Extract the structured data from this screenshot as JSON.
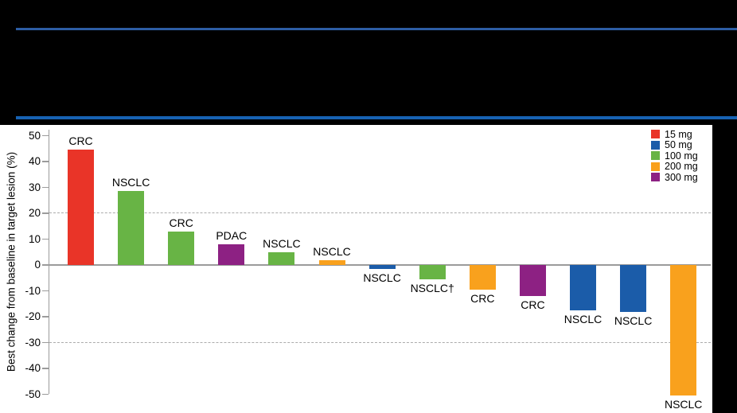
{
  "page": {
    "background": "#000000",
    "divider_top_color": "#2d5da4",
    "divider_bottom_color": "#1762b3",
    "panel_background": "#ffffff"
  },
  "chart_data": {
    "type": "bar",
    "subtype": "waterfall",
    "title": "",
    "xlabel": "",
    "ylabel": "Best change from baseline in target lesion (%)",
    "ylim": [
      -50,
      50
    ],
    "yticks": [
      50,
      40,
      30,
      20,
      10,
      0,
      -10,
      -20,
      -30,
      -40,
      -50
    ],
    "reference_lines": [
      20,
      -30
    ],
    "grid": "dashed horizontal reference lines at +20 and -30",
    "legend_position": "top-right",
    "legend": [
      {
        "label": "15 mg",
        "color": "#e93428"
      },
      {
        "label": "50 mg",
        "color": "#1b5ca9"
      },
      {
        "label": "100 mg",
        "color": "#68b445"
      },
      {
        "label": "200 mg",
        "color": "#f9a11d"
      },
      {
        "label": "300 mg",
        "color": "#8d2183"
      }
    ],
    "bars": [
      {
        "label": "CRC",
        "dose": "15 mg",
        "value": 44.5
      },
      {
        "label": "NSCLC",
        "dose": "100 mg",
        "value": 28.5
      },
      {
        "label": "CRC",
        "dose": "100 mg",
        "value": 13
      },
      {
        "label": "PDAC",
        "dose": "300 mg",
        "value": 8
      },
      {
        "label": "NSCLC",
        "dose": "100 mg",
        "value": 5
      },
      {
        "label": "NSCLC",
        "dose": "200 mg",
        "value": 2
      },
      {
        "label": "NSCLC",
        "dose": "50 mg",
        "value": -1.5
      },
      {
        "label": "NSCLC†",
        "dose": "100 mg",
        "value": -5.5
      },
      {
        "label": "CRC",
        "dose": "200 mg",
        "value": -9.5
      },
      {
        "label": "CRC",
        "dose": "300 mg",
        "value": -12
      },
      {
        "label": "NSCLC",
        "dose": "50 mg",
        "value": -17.5
      },
      {
        "label": "NSCLC",
        "dose": "50 mg",
        "value": -18
      },
      {
        "label": "NSCLC",
        "dose": "200 mg",
        "value": -50.5
      }
    ]
  }
}
